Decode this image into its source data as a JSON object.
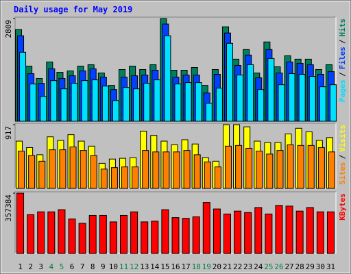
{
  "title": "Daily usage for May 2019",
  "legend_separator": "/",
  "chart_data": [
    {
      "type": "bar",
      "ylim": [
        0,
        2809
      ],
      "yticks": [
        2809
      ],
      "series": [
        {
          "name": "Hits",
          "color": "#00805c",
          "values": [
            2507,
            1508,
            1169,
            1621,
            1338,
            1376,
            1508,
            1546,
            1320,
            980,
            1414,
            1508,
            1414,
            1546,
            2809,
            1395,
            1395,
            1470,
            980,
            1414,
            2582,
            1697,
            1960,
            1320,
            2168,
            1489,
            1791,
            1697,
            1697,
            1414,
            1546
          ]
        },
        {
          "name": "Files",
          "color": "#0040ff",
          "values": [
            2337,
            1301,
            1037,
            1433,
            1169,
            1244,
            1376,
            1433,
            1206,
            867,
            1206,
            1244,
            1263,
            1395,
            2658,
            1206,
            1263,
            1263,
            773,
            1282,
            2413,
            1527,
            1810,
            1188,
            1960,
            1320,
            1621,
            1583,
            1546,
            1282,
            1357
          ]
        },
        {
          "name": "Pages",
          "color": "#00e0ff",
          "values": [
            1885,
            1018,
            679,
            1112,
            886,
            1037,
            1112,
            1131,
            961,
            566,
            924,
            886,
            1037,
            1131,
            2337,
            1018,
            1056,
            1056,
            490,
            905,
            2130,
            1263,
            1546,
            867,
            1715,
            999,
            1301,
            1282,
            1225,
            943,
            999
          ]
        }
      ]
    },
    {
      "type": "bar",
      "ylim": [
        0,
        917
      ],
      "yticks": [
        917
      ],
      "series": [
        {
          "name": "Visits",
          "color": "#ffff00",
          "values": [
            680,
            587,
            484,
            742,
            690,
            773,
            680,
            608,
            361,
            422,
            433,
            443,
            824,
            762,
            680,
            628,
            700,
            639,
            443,
            391,
            917,
            917,
            886,
            680,
            659,
            659,
            783,
            865,
            814,
            690,
            731
          ]
        },
        {
          "name": "Sites",
          "color": "#ff8000",
          "values": [
            536,
            474,
            391,
            556,
            556,
            597,
            546,
            474,
            278,
            299,
            309,
            309,
            546,
            525,
            525,
            525,
            546,
            484,
            381,
            309,
            608,
            618,
            577,
            536,
            494,
            546,
            628,
            618,
            618,
            587,
            525
          ]
        }
      ]
    },
    {
      "type": "bar",
      "ylim": [
        0,
        357384
      ],
      "yticks": [
        357384
      ],
      "categories": [
        "1",
        "2",
        "3",
        "4",
        "5",
        "6",
        "7",
        "8",
        "9",
        "10",
        "11",
        "12",
        "13",
        "14",
        "15",
        "16",
        "17",
        "18",
        "19",
        "20",
        "21",
        "22",
        "23",
        "24",
        "25",
        "26",
        "27",
        "28",
        "29",
        "30",
        "31"
      ],
      "category_colors": [
        "#000000",
        "#000000",
        "#000000",
        "#008040",
        "#008040",
        "#000000",
        "#000000",
        "#000000",
        "#000000",
        "#000000",
        "#008040",
        "#008040",
        "#000000",
        "#000000",
        "#000000",
        "#000000",
        "#000000",
        "#008040",
        "#008040",
        "#000000",
        "#000000",
        "#000000",
        "#000000",
        "#000000",
        "#008040",
        "#008040",
        "#000000",
        "#000000",
        "#000000",
        "#000000",
        "#000000"
      ],
      "series": [
        {
          "name": "KBytes",
          "color": "#ff0000",
          "values": [
            357384,
            229770,
            246790,
            246790,
            259555,
            204240,
            178710,
            225515,
            225515,
            187220,
            225515,
            246790,
            187220,
            191475,
            259555,
            212750,
            208495,
            217005,
            302105,
            263810,
            234025,
            251045,
            242535,
            272320,
            234025,
            285085,
            280830,
            251045,
            272320,
            246790,
            246790
          ]
        }
      ]
    }
  ]
}
